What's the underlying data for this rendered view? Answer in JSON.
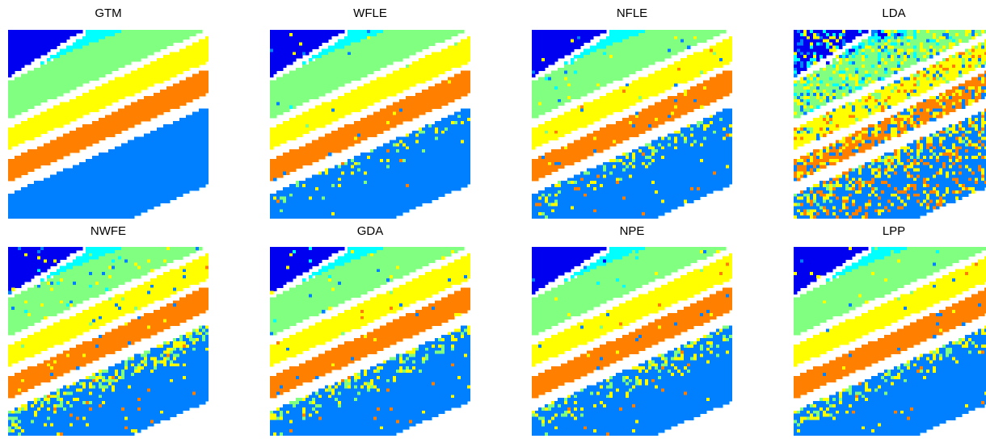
{
  "chart_data": [
    {
      "type": "heatmap",
      "title": "GTM",
      "noise": 0.0,
      "boundary_errors": 0.0
    },
    {
      "type": "heatmap",
      "title": "WFLE",
      "noise": 0.012,
      "boundary_errors": 0.25
    },
    {
      "type": "heatmap",
      "title": "NFLE",
      "noise": 0.035,
      "boundary_errors": 0.45
    },
    {
      "type": "heatmap",
      "title": "LDA",
      "noise": 0.42,
      "boundary_errors": 0.6
    },
    {
      "type": "heatmap",
      "title": "NWFE",
      "noise": 0.05,
      "boundary_errors": 0.9
    },
    {
      "type": "heatmap",
      "title": "GDA",
      "noise": 0.03,
      "boundary_errors": 0.6
    },
    {
      "type": "heatmap",
      "title": "NPE",
      "noise": 0.025,
      "boundary_errors": 0.6
    },
    {
      "type": "heatmap",
      "title": "LPP",
      "noise": 0.025,
      "boundary_errors": 0.55
    }
  ],
  "class_colors": [
    "#0000f0",
    "#00ffff",
    "#80ff80",
    "#ffff00",
    "#ff8000",
    "#0080ff"
  ]
}
